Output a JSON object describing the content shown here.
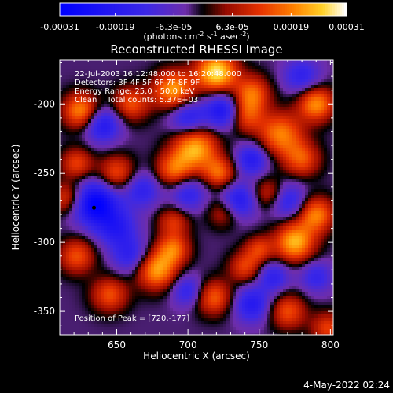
{
  "colorbar": {
    "ticks": [
      {
        "value": -0.00031,
        "label": "-0.00031"
      },
      {
        "value": -0.00019,
        "label": "-0.00019"
      },
      {
        "value": -6.3e-05,
        "label": "-6.3e-05"
      },
      {
        "value": 6.3e-05,
        "label": "6.3e-05"
      },
      {
        "value": 0.00019,
        "label": "0.00019"
      },
      {
        "value": 0.00031,
        "label": "0.00031"
      }
    ],
    "range": [
      -0.00031,
      0.00031
    ],
    "unit_parts": {
      "pre": "(photons cm",
      "e1": "-2",
      "mid1": " s",
      "e2": "-1",
      "mid2": " asec",
      "e3": "-2",
      "post": ")"
    }
  },
  "chart_data": {
    "type": "heatmap",
    "title": "Reconstructed RHESSI Image",
    "xlabel": "Heliocentric X (arcsec)",
    "ylabel": "Heliocentric Y (arcsec)",
    "xlim": [
      610,
      802
    ],
    "ylim": [
      -367,
      -168
    ],
    "x_ticks": [
      650,
      700,
      750,
      800
    ],
    "y_ticks": [
      -200,
      -250,
      -300,
      -350
    ],
    "info_lines": [
      "22-Jul-2003 16:12:48.000 to 16:20:48.000",
      "Detectors: 3F 4F 5F 6F 7F 8F 9F",
      "Energy Range: 25.0 - 50.0 keV",
      "Clean    Total counts: 5.37E+03"
    ],
    "peak_label": "Position of Peak = [720,-177]",
    "peak": [
      720,
      -177
    ],
    "marker": [
      634,
      -275
    ],
    "grid": false,
    "blobs": [
      {
        "x": 720,
        "y": -177,
        "a": 1.0,
        "r": 10
      },
      {
        "x": 690,
        "y": -190,
        "a": 0.8,
        "r": 10
      },
      {
        "x": 745,
        "y": -192,
        "a": 0.6,
        "r": 9
      },
      {
        "x": 765,
        "y": -222,
        "a": 0.7,
        "r": 11
      },
      {
        "x": 740,
        "y": -208,
        "a": 0.55,
        "r": 9
      },
      {
        "x": 790,
        "y": -200,
        "a": 0.75,
        "r": 9
      },
      {
        "x": 625,
        "y": -205,
        "a": 0.75,
        "r": 9
      },
      {
        "x": 660,
        "y": -200,
        "a": 0.55,
        "r": 9
      },
      {
        "x": 705,
        "y": -232,
        "a": 0.85,
        "r": 11
      },
      {
        "x": 690,
        "y": -248,
        "a": 0.6,
        "r": 9
      },
      {
        "x": 722,
        "y": -250,
        "a": 0.6,
        "r": 8
      },
      {
        "x": 780,
        "y": -240,
        "a": 0.55,
        "r": 9
      },
      {
        "x": 650,
        "y": -250,
        "a": 0.55,
        "r": 9
      },
      {
        "x": 622,
        "y": -243,
        "a": 0.5,
        "r": 8
      },
      {
        "x": 615,
        "y": -268,
        "a": 0.5,
        "r": 8
      },
      {
        "x": 757,
        "y": -265,
        "a": 0.45,
        "r": 8
      },
      {
        "x": 690,
        "y": -285,
        "a": 0.45,
        "r": 8
      },
      {
        "x": 725,
        "y": -278,
        "a": 0.4,
        "r": 8
      },
      {
        "x": 775,
        "y": -300,
        "a": 0.85,
        "r": 10
      },
      {
        "x": 790,
        "y": -280,
        "a": 0.7,
        "r": 9
      },
      {
        "x": 740,
        "y": -318,
        "a": 0.5,
        "r": 8
      },
      {
        "x": 750,
        "y": -305,
        "a": 0.45,
        "r": 7
      },
      {
        "x": 678,
        "y": -320,
        "a": 0.8,
        "r": 10
      },
      {
        "x": 690,
        "y": -305,
        "a": 0.6,
        "r": 8
      },
      {
        "x": 718,
        "y": -340,
        "a": 0.6,
        "r": 9
      },
      {
        "x": 645,
        "y": -338,
        "a": 0.55,
        "r": 9
      },
      {
        "x": 622,
        "y": -310,
        "a": 0.55,
        "r": 9
      },
      {
        "x": 770,
        "y": -350,
        "a": 0.55,
        "r": 9
      },
      {
        "x": 798,
        "y": -362,
        "a": 0.5,
        "r": 8
      },
      {
        "x": 650,
        "y": -290,
        "a": -0.5,
        "r": 10
      },
      {
        "x": 635,
        "y": -272,
        "a": -0.9,
        "r": 11
      },
      {
        "x": 725,
        "y": -205,
        "a": -0.7,
        "r": 9
      },
      {
        "x": 700,
        "y": -210,
        "a": -0.55,
        "r": 9
      },
      {
        "x": 640,
        "y": -215,
        "a": -0.6,
        "r": 9
      },
      {
        "x": 745,
        "y": -240,
        "a": -0.55,
        "r": 8
      },
      {
        "x": 735,
        "y": -270,
        "a": -0.6,
        "r": 9
      },
      {
        "x": 700,
        "y": -265,
        "a": -0.45,
        "r": 9
      },
      {
        "x": 770,
        "y": -270,
        "a": -0.5,
        "r": 9
      },
      {
        "x": 660,
        "y": -310,
        "a": -0.45,
        "r": 9
      },
      {
        "x": 700,
        "y": -335,
        "a": -0.45,
        "r": 8
      },
      {
        "x": 745,
        "y": -345,
        "a": -0.55,
        "r": 9
      },
      {
        "x": 760,
        "y": -325,
        "a": -0.45,
        "r": 8
      },
      {
        "x": 668,
        "y": -262,
        "a": -0.45,
        "r": 9
      },
      {
        "x": 790,
        "y": -325,
        "a": -0.4,
        "r": 8
      },
      {
        "x": 780,
        "y": -180,
        "a": -0.45,
        "r": 9
      }
    ]
  },
  "footer": {
    "date": "4-May-2022 02:24"
  }
}
